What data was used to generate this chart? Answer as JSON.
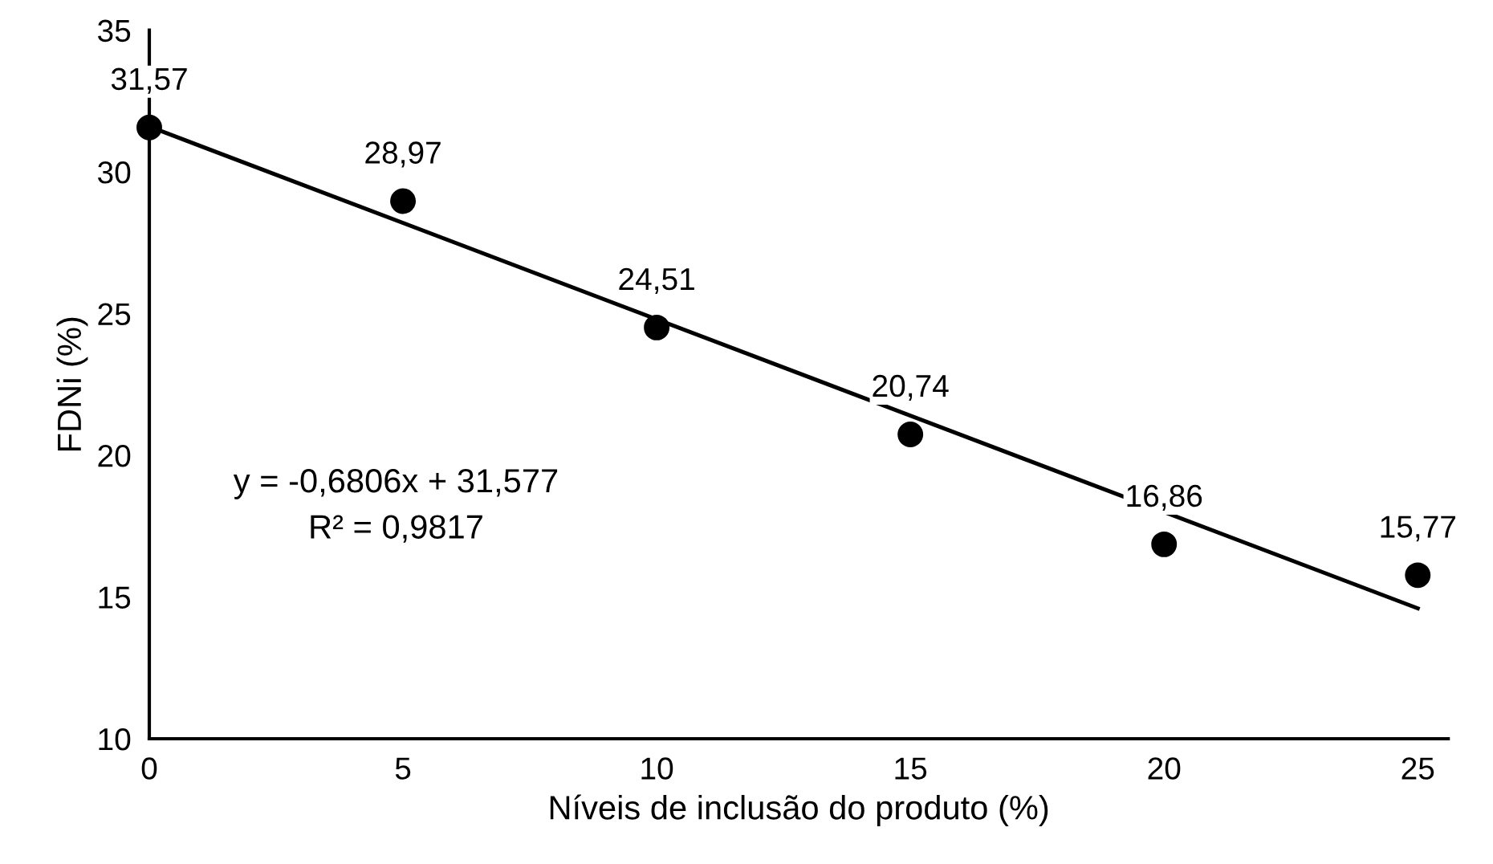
{
  "chart_data": {
    "type": "scatter",
    "xlabel": "Níveis de inclusão do produto (%)",
    "ylabel": "FDNi (%)",
    "x": [
      0,
      5,
      10,
      15,
      20,
      25
    ],
    "series": [
      {
        "color": "#000000",
        "marker": "circle",
        "values": [
          31.57,
          28.97,
          24.51,
          20.74,
          16.86,
          15.77
        ],
        "value_labels": [
          "31,57",
          "28,97",
          "24,51",
          "20,74",
          "16,86",
          "15,77"
        ]
      },
      {
        "type": "line",
        "color": "#000000",
        "x": [
          0,
          25
        ],
        "values": [
          31.6,
          14.6
        ],
        "line_style": "solid"
      }
    ],
    "annotations": [
      "y = -0,6806x + 31,577",
      "R² = 0,9817"
    ],
    "xlim": [
      0,
      25.6
    ],
    "xticks": [
      0,
      5,
      10,
      15,
      20,
      25
    ],
    "ylim": [
      10,
      35
    ],
    "yticks": [
      10,
      15,
      20,
      25,
      30,
      35
    ],
    "grid": false
  }
}
